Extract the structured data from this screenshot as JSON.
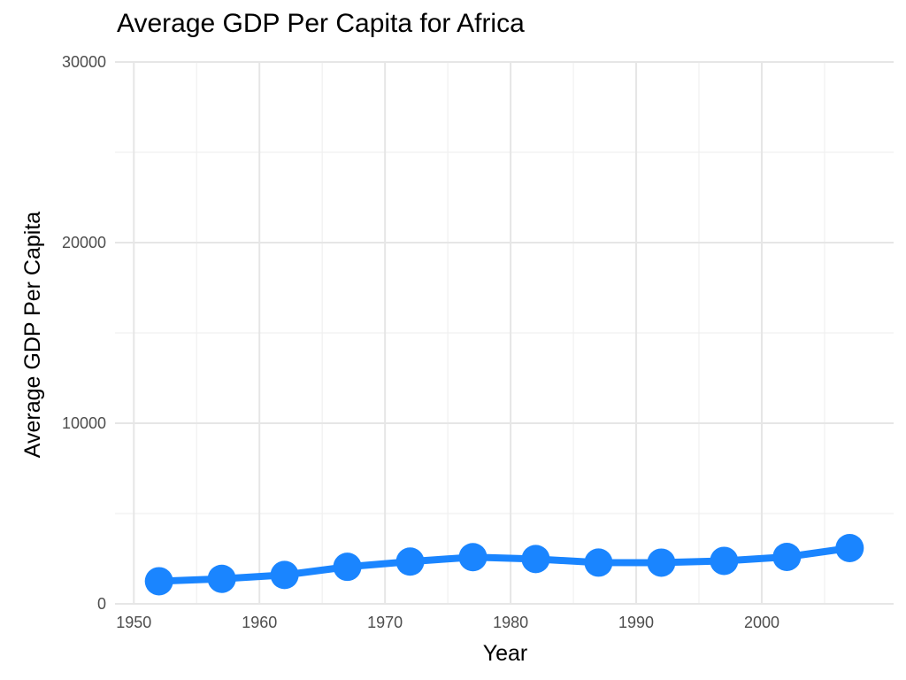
{
  "chart_data": {
    "type": "line",
    "title": "Average GDP Per Capita for Africa",
    "xlabel": "Year",
    "ylabel": "Average GDP Per Capita",
    "x": [
      1952,
      1957,
      1962,
      1967,
      1972,
      1977,
      1982,
      1987,
      1992,
      1997,
      2002,
      2007
    ],
    "series": [
      {
        "values": [
          1253,
          1385,
          1598,
          2050,
          2340,
          2586,
          2482,
          2283,
          2282,
          2379,
          2599,
          3089
        ]
      }
    ],
    "xlim": [
      1948.5,
      2010.5
    ],
    "ylim": [
      0,
      30000
    ],
    "xticks": [
      "1950",
      "1960",
      "1970",
      "1980",
      "1990",
      "2000"
    ],
    "yticks": [
      "0",
      "10000",
      "20000",
      "30000"
    ],
    "series_color": "#1a85ff",
    "grid": true,
    "legend": "none"
  }
}
